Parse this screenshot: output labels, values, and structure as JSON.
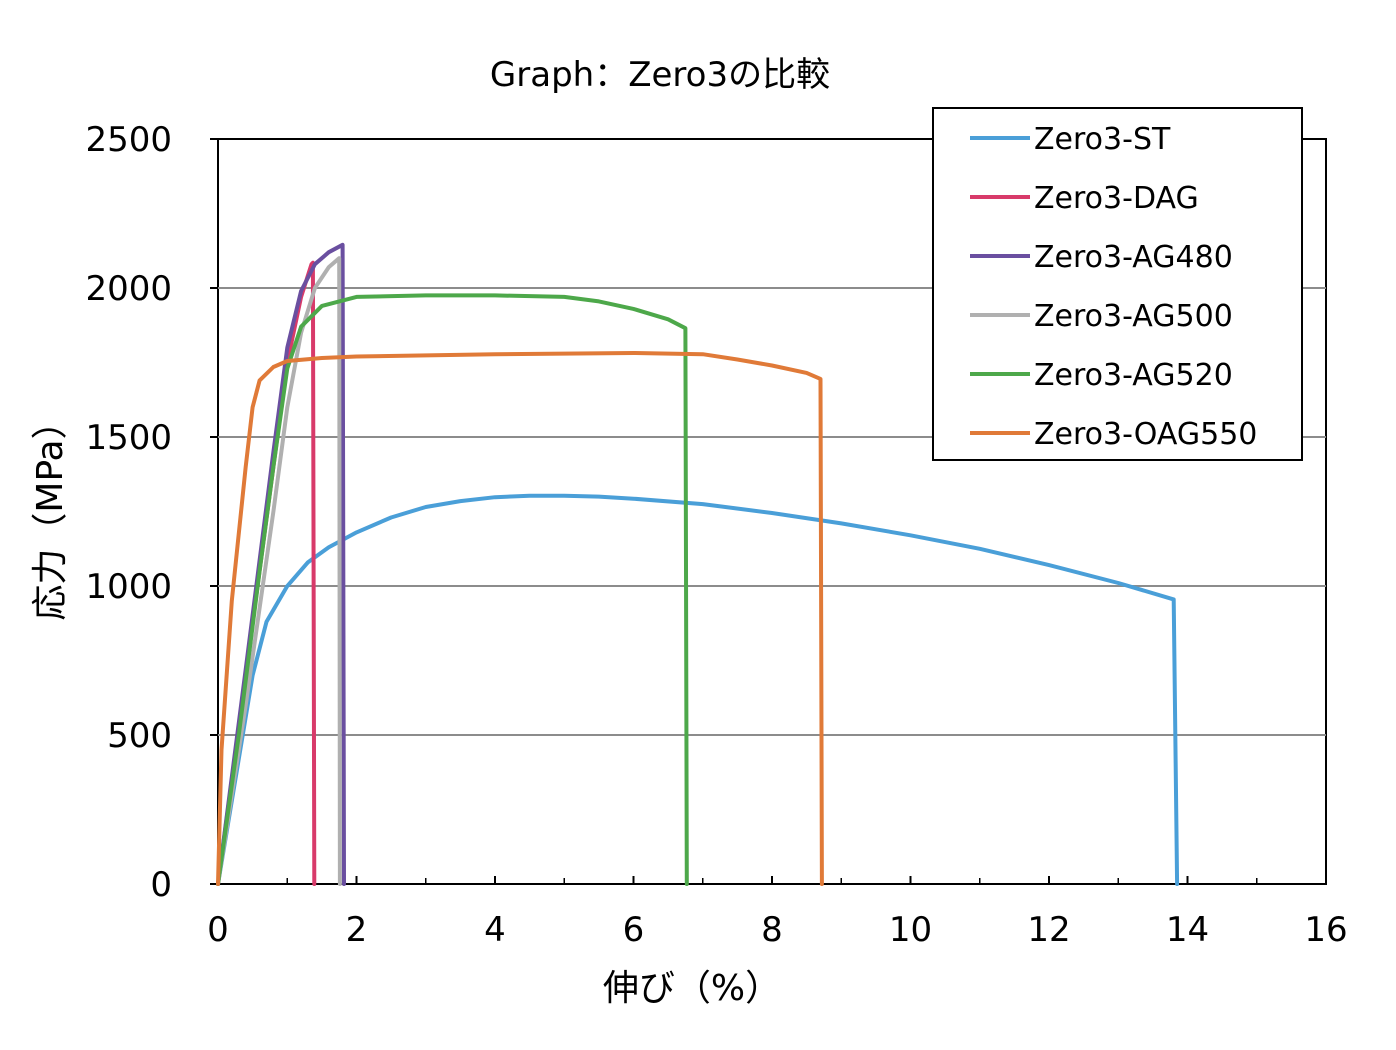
{
  "chart_data": {
    "type": "line",
    "title": "Graph：Zero3の比較",
    "xlabel": "伸び（%）",
    "ylabel": "応力（MPa）",
    "xlim": [
      0,
      16
    ],
    "ylim": [
      0,
      2500
    ],
    "xticks": [
      0,
      2,
      4,
      6,
      8,
      10,
      12,
      14,
      16
    ],
    "yticks": [
      0,
      500,
      1000,
      1500,
      2000,
      2500
    ],
    "grid": "horizontal",
    "legend_position": "top-right",
    "series": [
      {
        "name": "Zero3-ST",
        "color": "#4a9fd8",
        "points": [
          [
            0,
            0
          ],
          [
            0.3,
            420
          ],
          [
            0.5,
            700
          ],
          [
            0.7,
            880
          ],
          [
            1.0,
            1000
          ],
          [
            1.3,
            1080
          ],
          [
            1.6,
            1130
          ],
          [
            2.0,
            1180
          ],
          [
            2.5,
            1230
          ],
          [
            3.0,
            1265
          ],
          [
            3.5,
            1285
          ],
          [
            4.0,
            1298
          ],
          [
            4.5,
            1303
          ],
          [
            5.0,
            1303
          ],
          [
            5.5,
            1300
          ],
          [
            6.0,
            1293
          ],
          [
            7.0,
            1275
          ],
          [
            8.0,
            1245
          ],
          [
            9.0,
            1210
          ],
          [
            10.0,
            1170
          ],
          [
            11.0,
            1125
          ],
          [
            12.0,
            1070
          ],
          [
            13.0,
            1010
          ],
          [
            13.8,
            955
          ],
          [
            13.85,
            0
          ]
        ]
      },
      {
        "name": "Zero3-DAG",
        "color": "#d83a6a",
        "points": [
          [
            0,
            0
          ],
          [
            0.4,
            700
          ],
          [
            0.8,
            1400
          ],
          [
            1.0,
            1750
          ],
          [
            1.2,
            1970
          ],
          [
            1.35,
            2080
          ],
          [
            1.37,
            2085
          ],
          [
            1.39,
            0
          ]
        ]
      },
      {
        "name": "Zero3-AG480",
        "color": "#6a4fa0",
        "points": [
          [
            0,
            0
          ],
          [
            0.4,
            720
          ],
          [
            0.8,
            1450
          ],
          [
            1.0,
            1800
          ],
          [
            1.2,
            1990
          ],
          [
            1.4,
            2080
          ],
          [
            1.6,
            2120
          ],
          [
            1.8,
            2145
          ],
          [
            1.82,
            0
          ]
        ]
      },
      {
        "name": "Zero3-AG500",
        "color": "#b0b0b0",
        "points": [
          [
            0,
            0
          ],
          [
            0.4,
            600
          ],
          [
            0.8,
            1250
          ],
          [
            1.0,
            1600
          ],
          [
            1.2,
            1850
          ],
          [
            1.4,
            2000
          ],
          [
            1.6,
            2070
          ],
          [
            1.75,
            2100
          ],
          [
            1.76,
            0
          ]
        ]
      },
      {
        "name": "Zero3-AG520",
        "color": "#4da84a",
        "points": [
          [
            0,
            0
          ],
          [
            0.3,
            500
          ],
          [
            0.6,
            1050
          ],
          [
            0.8,
            1400
          ],
          [
            1.0,
            1730
          ],
          [
            1.2,
            1870
          ],
          [
            1.5,
            1940
          ],
          [
            2.0,
            1970
          ],
          [
            3.0,
            1975
          ],
          [
            4.0,
            1975
          ],
          [
            5.0,
            1970
          ],
          [
            5.5,
            1955
          ],
          [
            6.0,
            1930
          ],
          [
            6.5,
            1895
          ],
          [
            6.75,
            1865
          ],
          [
            6.77,
            0
          ]
        ]
      },
      {
        "name": "Zero3-OAG550",
        "color": "#e07a38",
        "points": [
          [
            0,
            0
          ],
          [
            0.05,
            450
          ],
          [
            0.2,
            950
          ],
          [
            0.4,
            1400
          ],
          [
            0.5,
            1600
          ],
          [
            0.6,
            1690
          ],
          [
            0.8,
            1735
          ],
          [
            1.0,
            1755
          ],
          [
            1.5,
            1765
          ],
          [
            2.0,
            1770
          ],
          [
            4.0,
            1778
          ],
          [
            6.0,
            1782
          ],
          [
            7.0,
            1778
          ],
          [
            7.5,
            1760
          ],
          [
            8.0,
            1740
          ],
          [
            8.5,
            1715
          ],
          [
            8.7,
            1695
          ],
          [
            8.72,
            0
          ]
        ]
      }
    ]
  }
}
